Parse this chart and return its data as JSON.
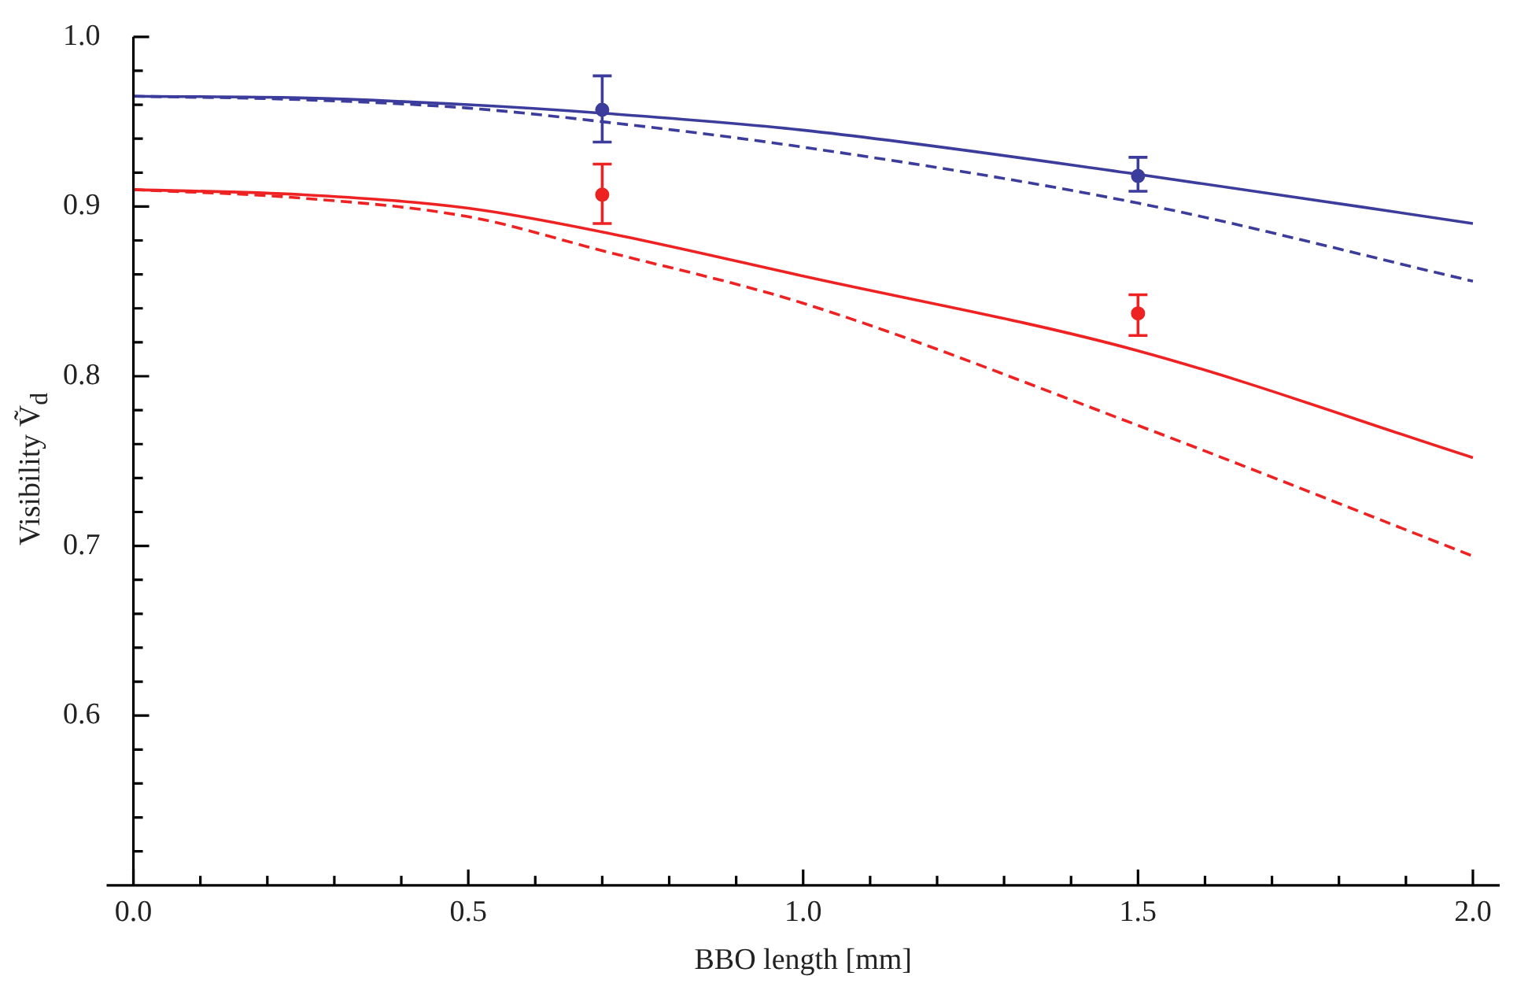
{
  "chart_data": {
    "type": "line",
    "xlabel": "BBO length [mm]",
    "ylabel": "Visibility Ṽ$_{d}$",
    "xlim": [
      -0.04,
      2.04
    ],
    "ylim": [
      0.5,
      1.0
    ],
    "xticks": [
      {
        "value": 0,
        "label": "0.0"
      },
      {
        "value": 0.1,
        "label": null
      },
      {
        "value": 0.2,
        "label": null
      },
      {
        "value": 0.3,
        "label": null
      },
      {
        "value": 0.4,
        "label": null
      },
      0.5,
      {
        "value": 0.6,
        "label": null
      },
      {
        "value": 0.7,
        "label": null
      },
      {
        "value": 0.8,
        "label": null
      },
      {
        "value": 0.9,
        "label": null
      },
      {
        "value": 1,
        "label": "1.0"
      },
      {
        "value": 1.1,
        "label": null
      },
      {
        "value": 1.2,
        "label": null
      },
      {
        "value": 1.3,
        "label": null
      },
      {
        "value": 1.4,
        "label": null
      },
      1.5,
      {
        "value": 1.6,
        "label": null
      },
      {
        "value": 1.7,
        "label": null
      },
      {
        "value": 1.8,
        "label": null
      },
      {
        "value": 1.9,
        "label": null
      },
      {
        "value": 2,
        "label": "2.0"
      }
    ],
    "yticks": [
      {
        "value": 0.52,
        "label": null
      },
      {
        "value": 0.54,
        "label": null
      },
      {
        "value": 0.56,
        "label": null
      },
      {
        "value": 0.58,
        "label": null
      },
      0.6,
      {
        "value": 0.62,
        "label": null
      },
      {
        "value": 0.64,
        "label": null
      },
      {
        "value": 0.66,
        "label": null
      },
      {
        "value": 0.68,
        "label": null
      },
      0.7,
      {
        "value": 0.72,
        "label": null
      },
      {
        "value": 0.74,
        "label": null
      },
      {
        "value": 0.76,
        "label": null
      },
      {
        "value": 0.78,
        "label": null
      },
      0.8,
      {
        "value": 0.82,
        "label": null
      },
      {
        "value": 0.84,
        "label": null
      },
      {
        "value": 0.86,
        "label": null
      },
      {
        "value": 0.88,
        "label": null
      },
      0.9,
      {
        "value": 0.92,
        "label": null
      },
      {
        "value": 0.94,
        "label": null
      },
      {
        "value": 0.96,
        "label": null
      },
      {
        "value": 0.98,
        "label": null
      },
      {
        "value": 1,
        "label": "1.0"
      }
    ],
    "grid": false,
    "legend": false,
    "series": [
      {
        "color": "#3c3c9c",
        "line_style": "solid",
        "marker": "none",
        "x": [
          0,
          0.25,
          0.5,
          0.7,
          1.0,
          1.5,
          2.0
        ],
        "values": [
          0.965,
          0.964,
          0.96,
          0.955,
          0.945,
          0.919,
          0.89
        ]
      },
      {
        "color": "#3c3c9c",
        "line_style": "dashed",
        "marker": "none",
        "x": [
          0,
          0.25,
          0.5,
          0.7,
          1.0,
          1.5,
          2.0
        ],
        "values": [
          0.965,
          0.963,
          0.958,
          0.95,
          0.935,
          0.902,
          0.856
        ]
      },
      {
        "color": "#ee2222",
        "line_style": "solid",
        "marker": "none",
        "x": [
          0,
          0.25,
          0.5,
          0.7,
          1.0,
          1.5,
          2.0
        ],
        "values": [
          0.91,
          0.907,
          0.899,
          0.885,
          0.859,
          0.815,
          0.752
        ]
      },
      {
        "color": "#ee2222",
        "line_style": "dashed",
        "marker": "none",
        "x": [
          0,
          0.25,
          0.5,
          0.7,
          1.0,
          1.5,
          2.0
        ],
        "values": [
          0.91,
          0.905,
          0.894,
          0.874,
          0.843,
          0.771,
          0.694
        ]
      },
      {
        "type": "scatter",
        "color": "#3c3c9c",
        "marker": "circle",
        "x": [
          0.7,
          1.5
        ],
        "values": [
          0.957,
          0.918
        ],
        "errors": [
          [
            0.938,
            0.977
          ],
          [
            0.909,
            0.929
          ]
        ]
      },
      {
        "type": "scatter",
        "color": "#ee2222",
        "marker": "circle",
        "x": [
          0.7,
          1.5
        ],
        "values": [
          0.907,
          0.837
        ],
        "errors": [
          [
            0.89,
            0.925
          ],
          [
            0.824,
            0.848
          ]
        ]
      }
    ]
  }
}
